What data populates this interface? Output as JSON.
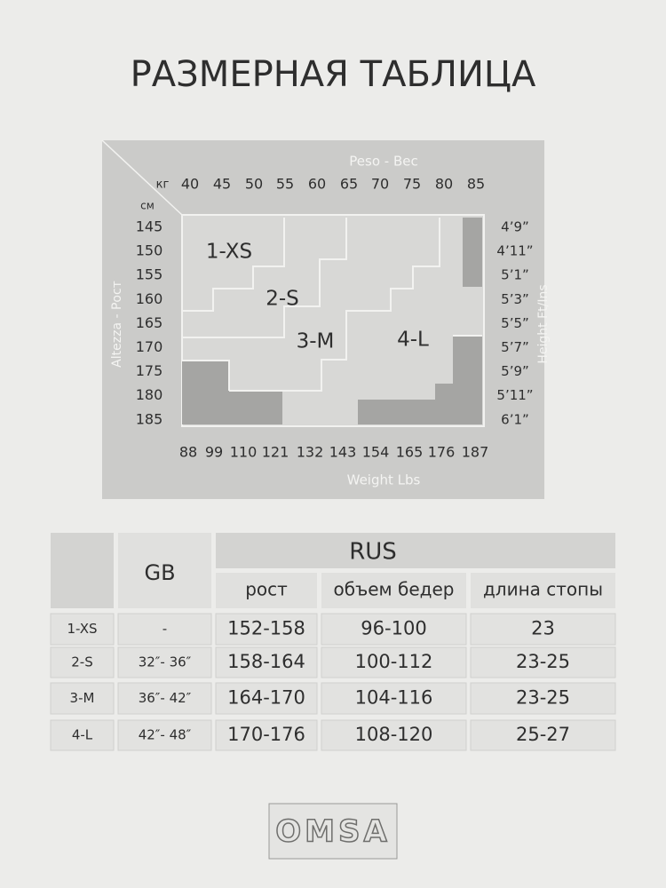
{
  "title": "РАЗМЕРНАЯ ТАБЛИЦА",
  "size_chart": {
    "weight_title": "Peso - Вес",
    "kg_unit": "кг",
    "kg": [
      40,
      45,
      50,
      55,
      60,
      65,
      70,
      75,
      80,
      85
    ],
    "cm_unit": "см",
    "cm": [
      145,
      150,
      155,
      160,
      165,
      170,
      175,
      180,
      185
    ],
    "height_title": "Altezza - Рост",
    "ft_title": "Height Ft/Ins",
    "ft": [
      "4’9”",
      "4’11”",
      "5’1”",
      "5’3”",
      "5’5”",
      "5’7”",
      "5’9”",
      "5’11”",
      "6’1”"
    ],
    "lbs": [
      88,
      99,
      110,
      121,
      132,
      143,
      154,
      165,
      176,
      187
    ],
    "lbs_title": "Weight Lbs",
    "zones": [
      "1-XS",
      "2-S",
      "3-M",
      "4-L"
    ]
  },
  "table": {
    "header": {
      "gb": "GB",
      "rus": "RUS",
      "columns": [
        "рост",
        "объем бедер",
        "длина стопы"
      ]
    },
    "rows": [
      [
        "1-XS",
        "-",
        "152-158",
        "96-100",
        "23"
      ],
      [
        "2-S",
        "32″- 36″",
        "158-164",
        "100-112",
        "23-25"
      ],
      [
        "3-M",
        "36″- 42″",
        "164-170",
        "104-116",
        "23-25"
      ],
      [
        "4-L",
        "42″- 48″",
        "170-176",
        "108-120",
        "25-27"
      ]
    ]
  },
  "logo": "OMSA"
}
